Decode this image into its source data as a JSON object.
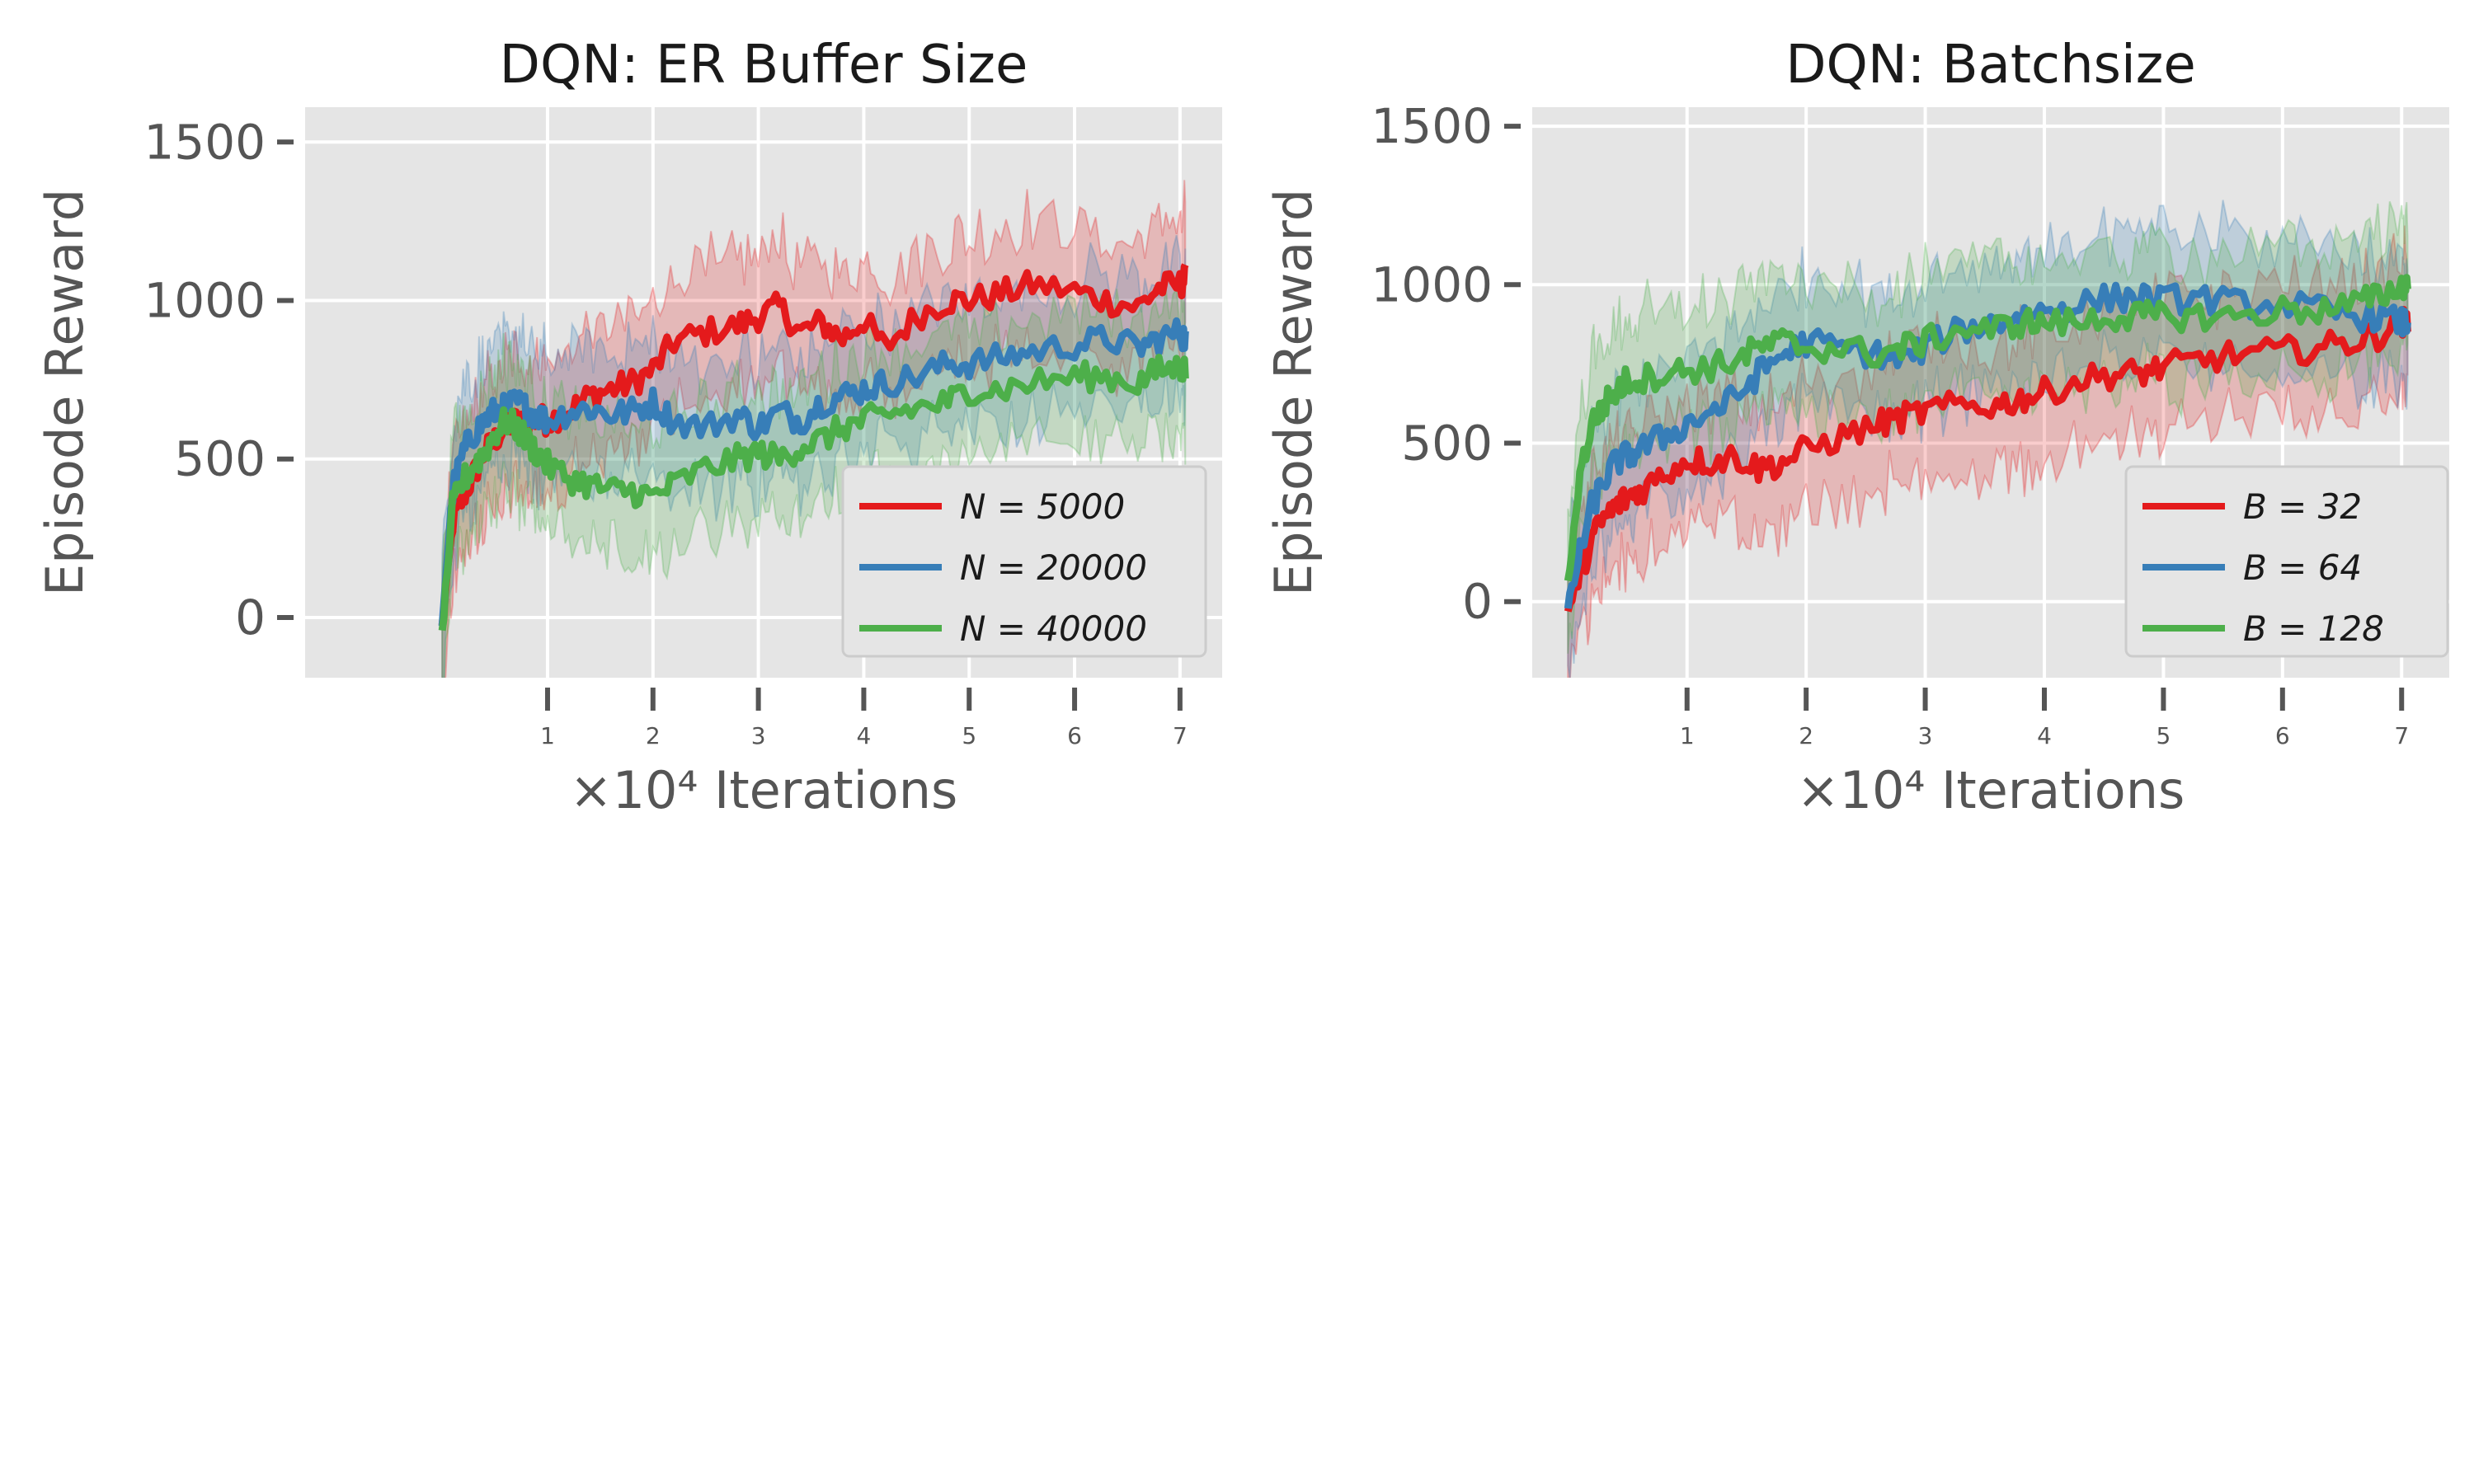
{
  "chart_data": [
    {
      "type": "line",
      "title": "DQN: ER Buffer Size",
      "xlabel": "×10⁴ Iterations",
      "ylabel": "Episode Reward",
      "xlim": [
        -1.3,
        7.4
      ],
      "ylim": [
        -190,
        1610
      ],
      "xticks": [
        1,
        2,
        3,
        4,
        5,
        6,
        7
      ],
      "yticks": [
        0,
        500,
        1000,
        1500
      ],
      "grid": true,
      "legend_position": "lower-right",
      "shaded_band": true,
      "series": [
        {
          "name": "N = 5000",
          "color": "#e41a1c",
          "x": [
            0,
            0.1,
            0.2,
            0.3,
            0.4,
            0.5,
            0.6,
            0.7,
            0.8,
            0.9,
            1.0,
            1.2,
            1.4,
            1.6,
            1.8,
            2.0,
            2.2,
            2.5,
            2.8,
            3.0,
            3.2,
            3.4,
            3.6,
            3.8,
            4.0,
            4.2,
            4.5,
            4.8,
            5.0,
            5.3,
            5.6,
            6.0,
            6.3,
            6.6,
            6.8,
            7.0,
            7.05
          ],
          "values": [
            -30,
            300,
            380,
            450,
            520,
            560,
            600,
            620,
            600,
            630,
            620,
            650,
            700,
            720,
            740,
            780,
            870,
            900,
            920,
            950,
            980,
            900,
            930,
            880,
            940,
            850,
            950,
            1000,
            1000,
            1020,
            1050,
            1030,
            1000,
            980,
            1040,
            1050,
            1070
          ]
        },
        {
          "name": "N = 20000",
          "color": "#377eb8",
          "x": [
            0,
            0.1,
            0.2,
            0.3,
            0.4,
            0.5,
            0.6,
            0.7,
            0.8,
            0.9,
            1.0,
            1.2,
            1.4,
            1.6,
            1.8,
            2.0,
            2.2,
            2.5,
            2.8,
            3.0,
            3.2,
            3.4,
            3.6,
            3.8,
            4.0,
            4.2,
            4.5,
            4.8,
            5.0,
            5.3,
            5.6,
            6.0,
            6.3,
            6.6,
            6.8,
            7.0,
            7.05
          ],
          "values": [
            -20,
            400,
            520,
            580,
            620,
            650,
            660,
            680,
            660,
            640,
            620,
            650,
            660,
            640,
            650,
            680,
            620,
            600,
            640,
            600,
            650,
            620,
            680,
            700,
            720,
            740,
            760,
            800,
            800,
            820,
            840,
            860,
            880,
            850,
            880,
            900,
            880
          ]
        },
        {
          "name": "N = 40000",
          "color": "#4daf4a",
          "x": [
            0,
            0.1,
            0.2,
            0.3,
            0.4,
            0.5,
            0.6,
            0.7,
            0.8,
            0.9,
            1.0,
            1.2,
            1.4,
            1.6,
            1.8,
            2.0,
            2.2,
            2.5,
            2.8,
            3.0,
            3.2,
            3.4,
            3.6,
            3.8,
            4.0,
            4.2,
            4.5,
            4.8,
            5.0,
            5.3,
            5.6,
            6.0,
            6.3,
            6.6,
            6.8,
            7.0,
            7.05
          ],
          "values": [
            -50,
            350,
            430,
            480,
            520,
            580,
            620,
            600,
            560,
            520,
            480,
            440,
            420,
            400,
            400,
            380,
            420,
            470,
            500,
            520,
            500,
            540,
            560,
            600,
            620,
            640,
            660,
            680,
            720,
            720,
            740,
            760,
            760,
            740,
            780,
            790,
            780
          ]
        }
      ]
    },
    {
      "type": "line",
      "title": "DQN: Batchsize",
      "xlabel": "×10⁴ Iterations",
      "ylabel": "Episode Reward",
      "xlim": [
        -0.3,
        7.4
      ],
      "ylim": [
        -240,
        1560
      ],
      "xticks": [
        1,
        2,
        3,
        4,
        5,
        6,
        7
      ],
      "yticks": [
        0,
        500,
        1000,
        1500
      ],
      "grid": true,
      "legend_position": "lower-right",
      "shaded_band": true,
      "series": [
        {
          "name": "B = 32",
          "color": "#e41a1c",
          "x": [
            0,
            0.1,
            0.2,
            0.3,
            0.4,
            0.5,
            0.6,
            0.8,
            1.0,
            1.2,
            1.4,
            1.6,
            1.8,
            2.0,
            2.3,
            2.6,
            2.8,
            3.0,
            3.3,
            3.6,
            3.8,
            4.0,
            4.3,
            4.6,
            4.8,
            5.0,
            5.3,
            5.6,
            6.0,
            6.3,
            6.6,
            6.8,
            7.0,
            7.05
          ],
          "values": [
            -30,
            80,
            200,
            260,
            300,
            330,
            350,
            400,
            450,
            440,
            460,
            420,
            440,
            480,
            520,
            560,
            580,
            600,
            620,
            620,
            640,
            660,
            700,
            720,
            720,
            740,
            760,
            780,
            790,
            800,
            820,
            840,
            880,
            880
          ]
        },
        {
          "name": "B = 64",
          "color": "#377eb8",
          "x": [
            0,
            0.1,
            0.2,
            0.3,
            0.4,
            0.5,
            0.6,
            0.8,
            1.0,
            1.2,
            1.4,
            1.6,
            1.8,
            2.0,
            2.3,
            2.6,
            2.8,
            3.0,
            3.3,
            3.6,
            3.8,
            4.0,
            4.3,
            4.6,
            4.8,
            5.0,
            5.3,
            5.6,
            6.0,
            6.3,
            6.6,
            6.8,
            7.0,
            7.05
          ],
          "values": [
            -20,
            150,
            300,
            380,
            440,
            460,
            480,
            520,
            560,
            600,
            640,
            720,
            780,
            820,
            800,
            780,
            760,
            800,
            860,
            880,
            900,
            920,
            940,
            960,
            960,
            950,
            960,
            940,
            940,
            920,
            900,
            900,
            880,
            880
          ]
        },
        {
          "name": "B = 128",
          "color": "#4daf4a",
          "x": [
            0,
            0.1,
            0.2,
            0.3,
            0.4,
            0.5,
            0.6,
            0.8,
            1.0,
            1.2,
            1.4,
            1.6,
            1.8,
            2.0,
            2.3,
            2.6,
            2.8,
            3.0,
            3.3,
            3.6,
            3.8,
            4.0,
            4.3,
            4.6,
            4.8,
            5.0,
            5.3,
            5.6,
            6.0,
            6.3,
            6.6,
            6.8,
            7.0,
            7.05
          ],
          "values": [
            50,
            400,
            560,
            620,
            660,
            700,
            700,
            720,
            730,
            740,
            760,
            800,
            820,
            800,
            800,
            780,
            800,
            820,
            860,
            860,
            880,
            880,
            880,
            900,
            900,
            900,
            900,
            900,
            920,
            920,
            940,
            960,
            1000,
            1000
          ]
        }
      ]
    }
  ]
}
